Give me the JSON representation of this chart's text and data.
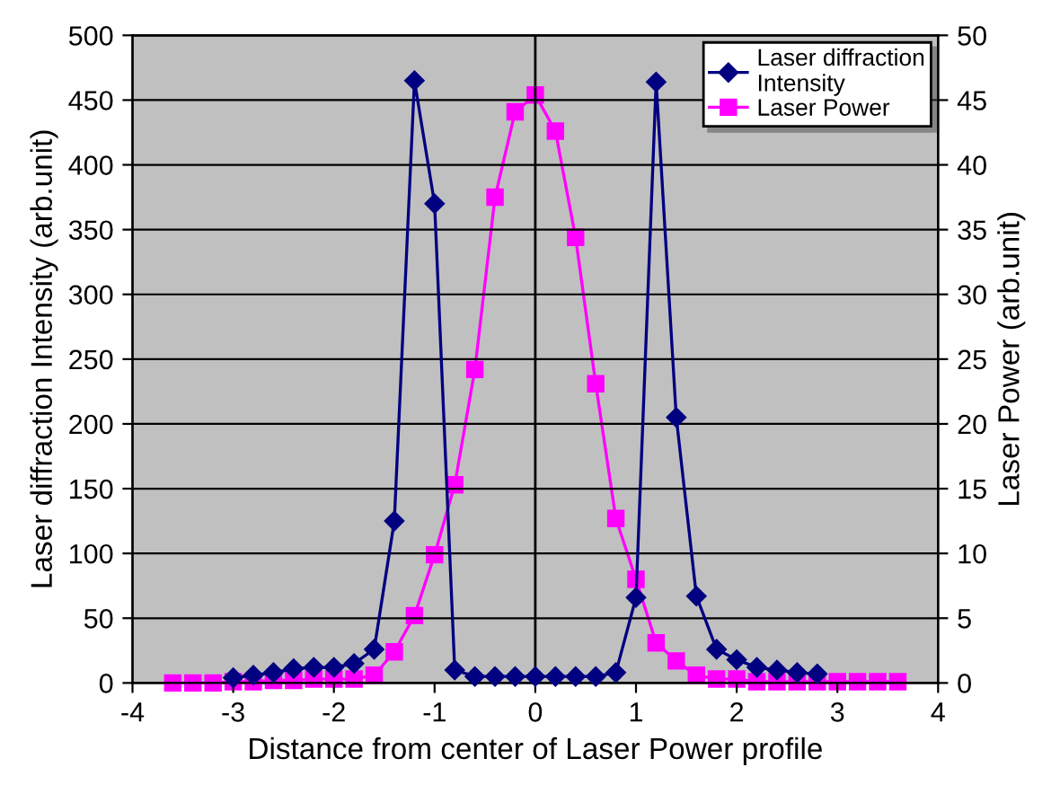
{
  "chart_data": {
    "type": "line",
    "xlabel": "Distance from center of Laser Power profile",
    "ylabel": "Laser diffraction Intensity (arb.unit)",
    "y2label": "Laser Power (arb.unit)",
    "series": [
      {
        "name": "Laser diffraction\nIntensity",
        "color": "#000080",
        "marker": "diamond",
        "x": [
          -3.0,
          -2.8,
          -2.6,
          -2.4,
          -2.2,
          -2.0,
          -1.8,
          -1.6,
          -1.4,
          -1.2,
          -1.0,
          -0.8,
          -0.6,
          -0.4,
          -0.2,
          0,
          0.2,
          0.4,
          0.6,
          0.8,
          1.0,
          1.2,
          1.4,
          1.6,
          1.8,
          2.0,
          2.2,
          2.4,
          2.6,
          2.8
        ],
        "values": [
          4,
          6,
          8,
          11,
          12,
          12,
          15,
          26,
          125,
          465,
          370,
          10,
          5,
          5,
          5,
          5,
          5,
          5,
          5,
          8,
          66,
          464,
          205,
          67,
          26,
          18,
          12,
          10,
          8,
          7
        ]
      },
      {
        "name": "Laser Power",
        "color": "#ff00ff",
        "marker": "square",
        "axis": "y2",
        "x": [
          -3.6,
          -3.4,
          -3.2,
          -3.0,
          -2.8,
          -2.6,
          -2.4,
          -2.2,
          -2.0,
          -1.8,
          -1.6,
          -1.4,
          -1.2,
          -1.0,
          -0.8,
          -0.6,
          -0.4,
          -0.2,
          0,
          0.2,
          0.4,
          0.6,
          0.8,
          1.0,
          1.2,
          1.4,
          1.6,
          1.8,
          2.0,
          2.2,
          2.4,
          2.6,
          2.8,
          3.0,
          3.2,
          3.4,
          3.6
        ],
        "values": [
          0,
          0,
          0,
          0.1,
          0.1,
          0.2,
          0.2,
          0.3,
          0.3,
          0.3,
          0.6,
          2.4,
          5.2,
          9.9,
          15.3,
          24.2,
          37.5,
          44.1,
          45.4,
          42.6,
          34.4,
          23.1,
          12.7,
          8.0,
          3.1,
          1.7,
          0.6,
          0.3,
          0.3,
          0.1,
          0.1,
          0.1,
          0.1,
          0.1,
          0.1,
          0.1,
          0.1
        ]
      }
    ],
    "xlim": [
      -4,
      4
    ],
    "xticks": [
      -4,
      -3,
      -2,
      -1,
      0,
      1,
      2,
      3,
      4
    ],
    "ylim": [
      0,
      500
    ],
    "yticks": [
      0,
      50,
      100,
      150,
      200,
      250,
      300,
      350,
      400,
      450,
      500
    ],
    "y2lim": [
      0,
      50
    ],
    "y2ticks": [
      0,
      5,
      10,
      15,
      20,
      25,
      30,
      35,
      40,
      45,
      50
    ],
    "ref_lines": [
      {
        "axis": "x",
        "value": 0,
        "color": "#000000"
      }
    ],
    "grid": "y",
    "legend": "top right",
    "line_style": "solid"
  }
}
